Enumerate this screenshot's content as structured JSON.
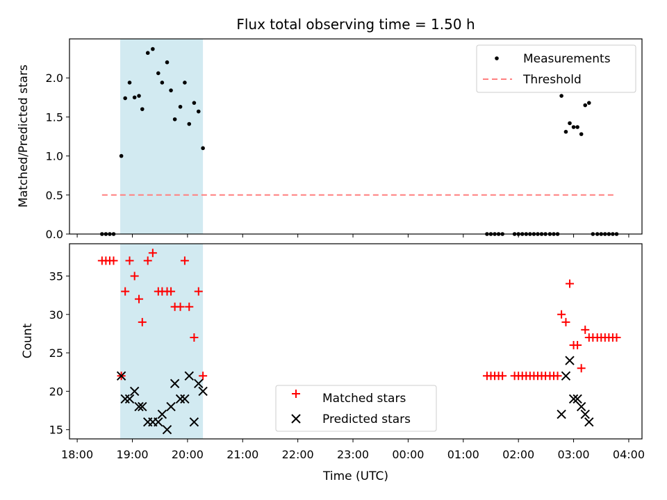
{
  "chart_data": {
    "title": "Flux total observing time = 1.50 h",
    "xlabel": "Time (UTC)",
    "x_tick_labels": [
      "18:00",
      "19:00",
      "20:00",
      "21:00",
      "22:00",
      "23:00",
      "00:00",
      "01:00",
      "02:00",
      "03:00",
      "04:00"
    ],
    "x_ticks_hours": [
      18,
      19,
      20,
      21,
      22,
      23,
      24,
      25,
      26,
      27,
      28
    ],
    "xlim_hours": [
      17.86,
      28.24
    ],
    "highlight_span_hours": [
      18.78,
      20.28
    ],
    "colors": {
      "highlight": "#add8e6",
      "measurements": "#000000",
      "threshold": "#ff7f7f",
      "matched": "#ff0000",
      "predicted": "#000000"
    },
    "panels": [
      {
        "type": "scatter",
        "ylabel": "Matched/Predicted stars",
        "ylim": [
          0,
          2.5
        ],
        "y_ticks": [
          0.0,
          0.5,
          1.0,
          1.5,
          2.0
        ],
        "y_tick_labels": [
          "0.0",
          "0.5",
          "1.0",
          "1.5",
          "2.0"
        ],
        "legend_position": "top-right",
        "series": [
          {
            "name": "Measurements",
            "kind": "dot",
            "x_hours": [
              18.45,
              18.52,
              18.59,
              18.66,
              18.8,
              18.87,
              18.95,
              19.04,
              19.12,
              19.18,
              19.28,
              19.37,
              19.47,
              19.54,
              19.63,
              19.7,
              19.77,
              19.87,
              19.95,
              20.03,
              20.12,
              20.2,
              20.28,
              25.43,
              25.5,
              25.57,
              25.64,
              25.71,
              25.93,
              26.0,
              26.07,
              26.14,
              26.21,
              26.28,
              26.35,
              26.42,
              26.49,
              26.57,
              26.64,
              26.71,
              26.78,
              26.86,
              26.93,
              27.0,
              27.07,
              27.14,
              27.21,
              27.28,
              27.35,
              27.43,
              27.5,
              27.57,
              27.64,
              27.71,
              27.78
            ],
            "values": [
              0,
              0,
              0,
              0,
              1.0,
              1.74,
              1.94,
              1.75,
              1.77,
              1.6,
              2.32,
              2.37,
              2.06,
              1.94,
              2.2,
              1.84,
              1.47,
              1.63,
              1.94,
              1.41,
              1.68,
              1.57,
              1.1,
              0,
              0,
              0,
              0,
              0,
              0,
              0,
              0,
              0,
              0,
              0,
              0,
              0,
              0,
              0,
              0,
              0,
              1.77,
              1.31,
              1.42,
              1.37,
              1.37,
              1.28,
              1.65,
              1.68,
              0,
              0,
              0,
              0,
              0,
              0,
              0
            ]
          },
          {
            "name": "Threshold",
            "kind": "dashed-line",
            "x_hours": [
              18.45,
              27.78
            ],
            "values": [
              0.5,
              0.5
            ]
          }
        ]
      },
      {
        "type": "scatter",
        "ylabel": "Count",
        "ylim": [
          13.8,
          39.2
        ],
        "y_ticks": [
          15,
          20,
          25,
          30,
          35
        ],
        "y_tick_labels": [
          "15",
          "20",
          "25",
          "30",
          "35"
        ],
        "legend_position": "lower-center",
        "series": [
          {
            "name": "Matched stars",
            "kind": "plus",
            "x_hours": [
              18.45,
              18.52,
              18.59,
              18.66,
              18.8,
              18.87,
              18.95,
              19.04,
              19.12,
              19.18,
              19.28,
              19.37,
              19.47,
              19.54,
              19.63,
              19.7,
              19.77,
              19.87,
              19.95,
              20.03,
              20.12,
              20.2,
              20.28,
              25.43,
              25.5,
              25.57,
              25.64,
              25.71,
              25.93,
              26.0,
              26.07,
              26.14,
              26.21,
              26.28,
              26.35,
              26.42,
              26.49,
              26.57,
              26.64,
              26.71,
              26.78,
              26.86,
              26.93,
              27.0,
              27.07,
              27.14,
              27.21,
              27.28,
              27.35,
              27.43,
              27.5,
              27.57,
              27.64,
              27.71,
              27.78
            ],
            "values": [
              37,
              37,
              37,
              37,
              22,
              33,
              37,
              35,
              32,
              29,
              37,
              38,
              33,
              33,
              33,
              33,
              31,
              31,
              37,
              31,
              27,
              33,
              22,
              22,
              22,
              22,
              22,
              22,
              22,
              22,
              22,
              22,
              22,
              22,
              22,
              22,
              22,
              22,
              22,
              22,
              30,
              29,
              34,
              26,
              26,
              23,
              28,
              27,
              27,
              27,
              27,
              27,
              27,
              27,
              27
            ]
          },
          {
            "name": "Predicted stars",
            "kind": "cross",
            "x_hours": [
              18.8,
              18.87,
              18.95,
              19.04,
              19.12,
              19.18,
              19.28,
              19.37,
              19.47,
              19.54,
              19.63,
              19.7,
              19.77,
              19.87,
              19.95,
              20.03,
              20.12,
              20.2,
              20.28,
              26.78,
              26.86,
              26.93,
              27.0,
              27.07,
              27.14,
              27.21,
              27.28
            ],
            "values": [
              22,
              19,
              19,
              20,
              18,
              18,
              16,
              16,
              16,
              17,
              15,
              18,
              21,
              19,
              19,
              22,
              16,
              21,
              20,
              17,
              22,
              24,
              19,
              19,
              18,
              17,
              16
            ]
          }
        ]
      }
    ]
  }
}
